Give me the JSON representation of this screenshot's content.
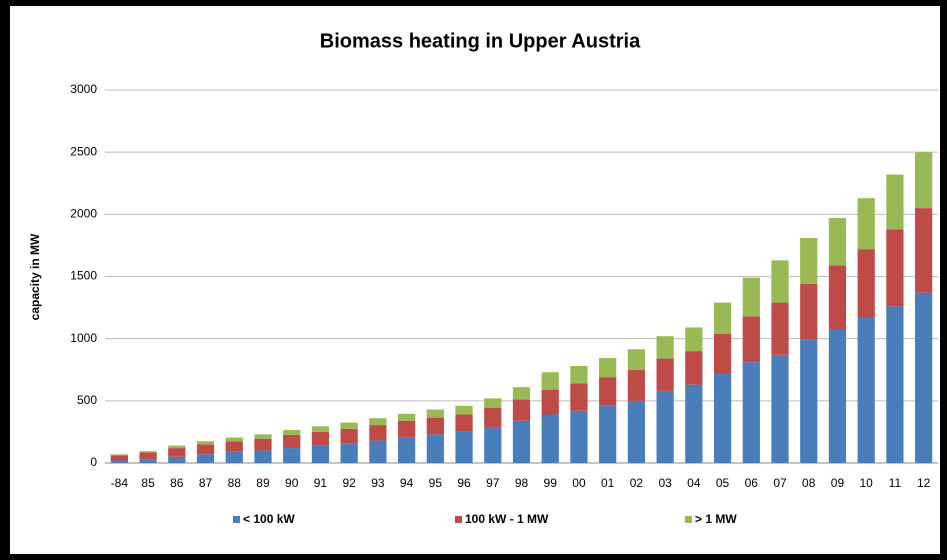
{
  "chart_data": {
    "type": "stacked_bar",
    "title": "Biomass heating in Upper Austria",
    "y_label": "capacity in MW",
    "categories": [
      "-84",
      "85",
      "86",
      "87",
      "88",
      "89",
      "90",
      "91",
      "92",
      "93",
      "94",
      "95",
      "96",
      "97",
      "98",
      "99",
      "00",
      "01",
      "02",
      "03",
      "04",
      "05",
      "06",
      "07",
      "08",
      "09",
      "10",
      "11",
      "12"
    ],
    "series": [
      {
        "name": "< 100 kW",
        "color": "#4a7ebb",
        "values": [
          20,
          30,
          50,
          70,
          90,
          100,
          120,
          140,
          160,
          180,
          210,
          230,
          250,
          290,
          340,
          390,
          420,
          460,
          500,
          580,
          630,
          720,
          810,
          870,
          990,
          1070,
          1170,
          1260,
          1370
        ]
      },
      {
        "name": "100 kW - 1 MW",
        "color": "#be4b48",
        "values": [
          40,
          55,
          70,
          80,
          85,
          95,
          105,
          110,
          115,
          125,
          130,
          135,
          140,
          155,
          170,
          200,
          220,
          230,
          250,
          260,
          270,
          320,
          370,
          420,
          450,
          520,
          550,
          620,
          680
        ]
      },
      {
        "name": "> 1 MW",
        "color": "#98b954",
        "values": [
          10,
          10,
          20,
          25,
          30,
          35,
          40,
          45,
          50,
          55,
          55,
          65,
          70,
          75,
          100,
          140,
          140,
          155,
          165,
          180,
          190,
          250,
          310,
          340,
          370,
          380,
          410,
          440,
          450
        ]
      }
    ],
    "ylim": [
      0,
      3000
    ],
    "yticks": [
      0,
      500,
      1000,
      1500,
      2000,
      2500,
      3000
    ],
    "grid": true,
    "legend": "bottom"
  }
}
